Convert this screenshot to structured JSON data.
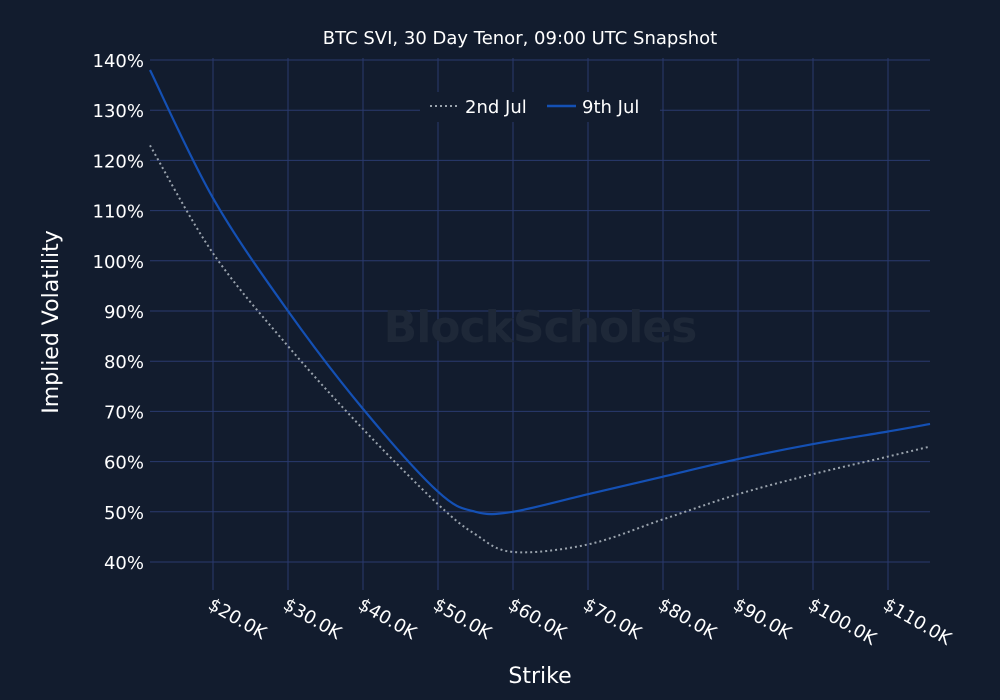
{
  "chart_data": {
    "type": "line",
    "title": "BTC SVI, 30 Day Tenor, 09:00 UTC Snapshot",
    "xlabel": "Strike",
    "ylabel": "Implied Volatility",
    "watermark": "BlockScholes",
    "x_ticks": [
      "$20.0K",
      "$30.0K",
      "$40.0K",
      "$50.0K",
      "$60.0K",
      "$70.0K",
      "$80.0K",
      "$90.0K",
      "$100.0K",
      "$110.0K"
    ],
    "x_tick_values": [
      20000,
      30000,
      40000,
      50000,
      60000,
      70000,
      80000,
      90000,
      100000,
      110000
    ],
    "y_ticks": [
      "40%",
      "50%",
      "60%",
      "70%",
      "80%",
      "90%",
      "100%",
      "110%",
      "120%",
      "130%",
      "140%"
    ],
    "y_tick_values": [
      40,
      50,
      60,
      70,
      80,
      90,
      100,
      110,
      120,
      130,
      140
    ],
    "xlim": [
      11600,
      115600
    ],
    "ylim": [
      35,
      141
    ],
    "grid": true,
    "legend_position": "top-center",
    "x": [
      11600,
      20000,
      30000,
      40000,
      50000,
      55000,
      60000,
      70000,
      80000,
      90000,
      100000,
      110000,
      115600
    ],
    "series": [
      {
        "name": "2nd Jul",
        "style": "dotted",
        "color": "#9aa3ad",
        "values": [
          123,
          101.5,
          83,
          66.5,
          51.5,
          45.5,
          42,
          43.5,
          48.5,
          53.5,
          57.5,
          61,
          63
        ]
      },
      {
        "name": "9th Jul",
        "style": "solid",
        "color": "#1450b4",
        "values": [
          138,
          112.5,
          90,
          70.5,
          54,
          50,
          50,
          53.5,
          57,
          60.5,
          63.5,
          66,
          67.5
        ]
      }
    ]
  },
  "colors": {
    "background": "#121c2e",
    "grid": "#2a3a6e",
    "text": "#ffffff"
  }
}
